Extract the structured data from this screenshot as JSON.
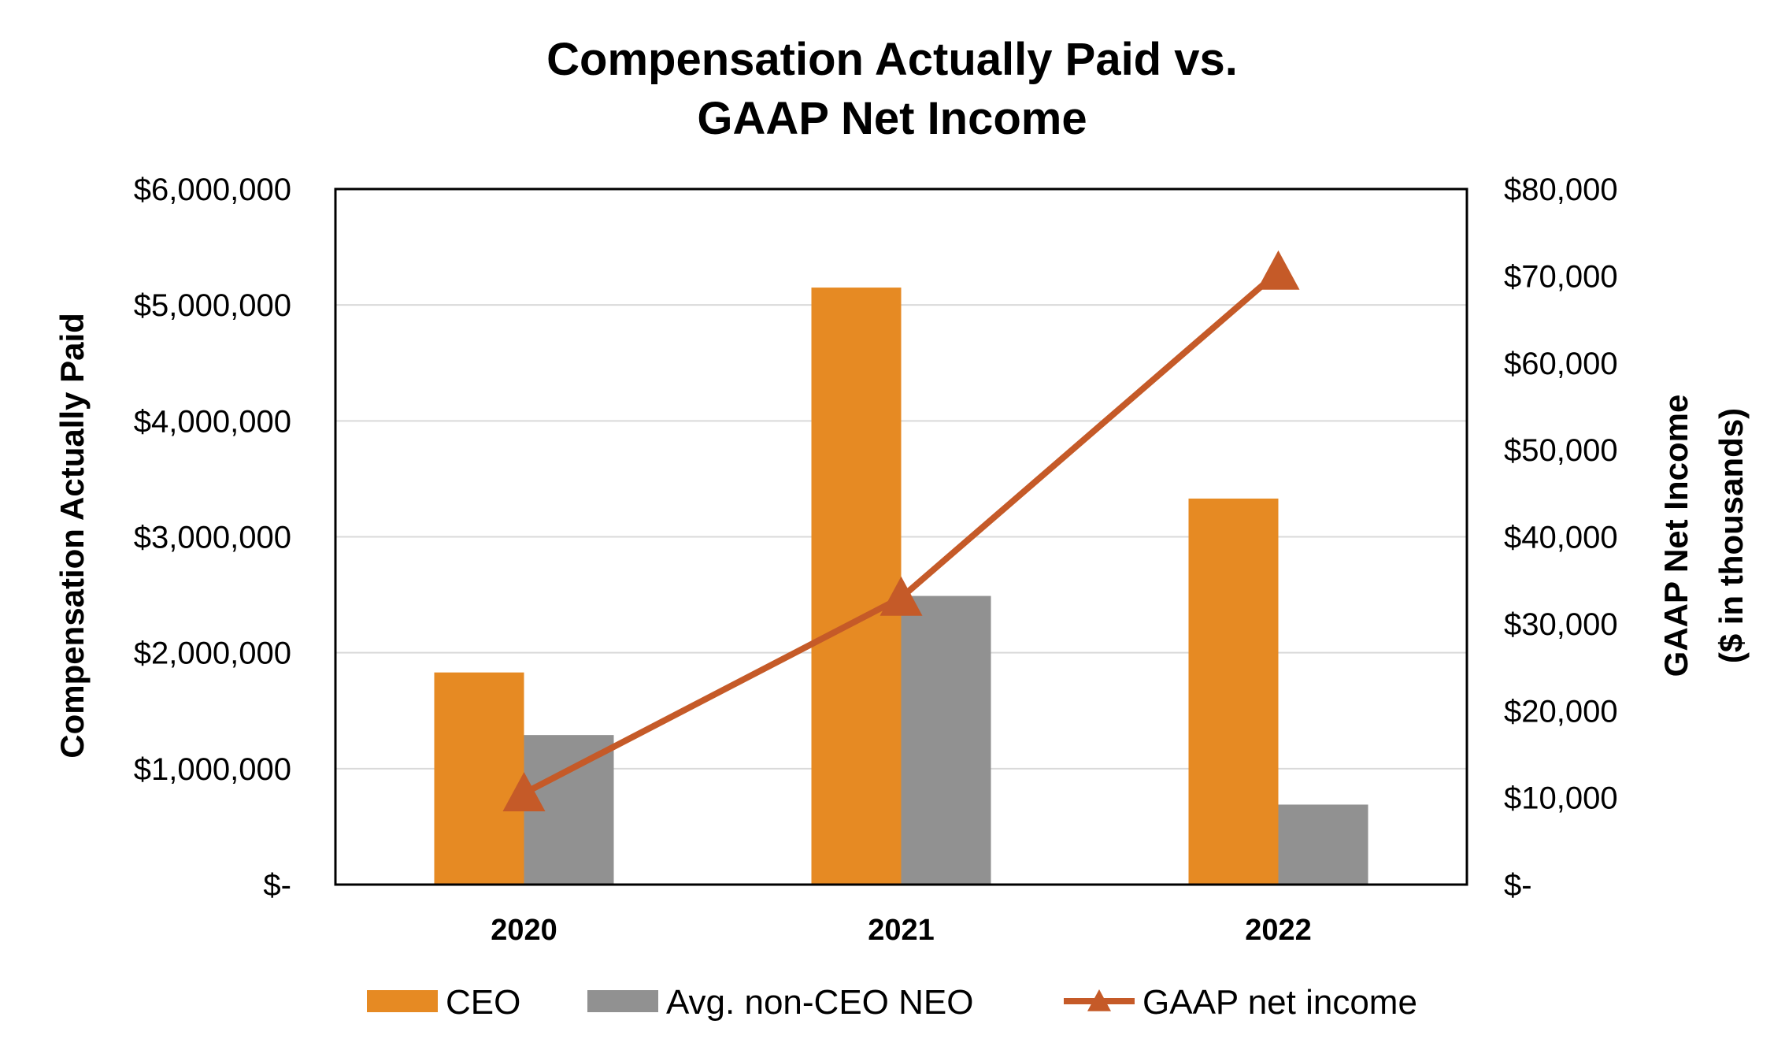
{
  "chart_data": {
    "type": "bar",
    "title": [
      "Compensation Actually Paid vs.",
      "GAAP Net Income"
    ],
    "categories": [
      "2020",
      "2021",
      "2022"
    ],
    "series": [
      {
        "name": "CEO",
        "kind": "bar",
        "axis": "left",
        "color": "#E68A23",
        "values": [
          1830000,
          5150000,
          3330000
        ]
      },
      {
        "name": "Avg. non-CEO NEO",
        "kind": "bar",
        "axis": "left",
        "color": "#919191",
        "values": [
          1290000,
          2490000,
          690000
        ]
      },
      {
        "name": "GAAP net income",
        "kind": "line",
        "axis": "right",
        "color": "#C55A28",
        "marker": "triangle",
        "values": [
          10500,
          33000,
          70500
        ]
      }
    ],
    "y_left": {
      "label": "Compensation Actually Paid",
      "ylim": [
        0,
        6000000
      ],
      "ticks": [
        0,
        1000000,
        2000000,
        3000000,
        4000000,
        5000000,
        6000000
      ],
      "tick_labels": [
        "$-",
        "$1,000,000",
        "$2,000,000",
        "$3,000,000",
        "$4,000,000",
        "$5,000,000",
        "$6,000,000"
      ]
    },
    "y_right": {
      "label_lines": [
        "GAAP Net Income",
        "($ in thousands)"
      ],
      "ylim": [
        0,
        80000
      ],
      "ticks": [
        0,
        10000,
        20000,
        30000,
        40000,
        50000,
        60000,
        70000,
        80000
      ],
      "tick_labels": [
        "$-",
        "$10,000",
        "$20,000",
        "$30,000",
        "$40,000",
        "$50,000",
        "$60,000",
        "$70,000",
        "$80,000"
      ]
    },
    "grid": true,
    "legend": {
      "position": "bottom",
      "items": [
        "CEO",
        "Avg. non-CEO NEO",
        "GAAP net income"
      ]
    }
  }
}
